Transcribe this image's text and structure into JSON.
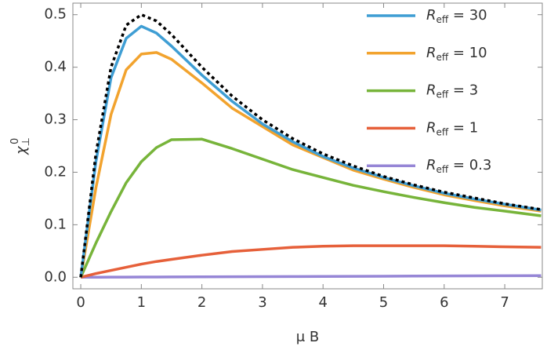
{
  "chart_data": {
    "type": "line",
    "x_label": "μ B",
    "y_label": "χ⊥0",
    "x": [
      0,
      0.25,
      0.5,
      0.75,
      1,
      1.25,
      1.5,
      2,
      2.5,
      3,
      3.5,
      4,
      4.5,
      5,
      5.5,
      6,
      6.5,
      7,
      7.6
    ],
    "series": [
      {
        "color": "#000000",
        "dash": true,
        "values": [
          0,
          0.235,
          0.4,
          0.48,
          0.5,
          0.488,
          0.462,
          0.4,
          0.345,
          0.3,
          0.264,
          0.235,
          0.212,
          0.192,
          0.176,
          0.162,
          0.151,
          0.14,
          0.129
        ]
      },
      {
        "name": "Reff = 30",
        "color": "#3f9ed4",
        "values": [
          0,
          0.22,
          0.38,
          0.455,
          0.478,
          0.465,
          0.44,
          0.385,
          0.335,
          0.292,
          0.258,
          0.23,
          0.208,
          0.19,
          0.174,
          0.16,
          0.149,
          0.139,
          0.128
        ]
      },
      {
        "name": "Reff = 10",
        "color": "#f2a32e",
        "values": [
          0,
          0.17,
          0.31,
          0.395,
          0.425,
          0.428,
          0.415,
          0.37,
          0.322,
          0.287,
          0.252,
          0.228,
          0.204,
          0.187,
          0.171,
          0.157,
          0.146,
          0.136,
          0.126
        ]
      },
      {
        "name": "Reff = 3",
        "color": "#77b43a",
        "values": [
          0,
          0.065,
          0.125,
          0.18,
          0.22,
          0.247,
          0.262,
          0.263,
          0.245,
          0.225,
          0.205,
          0.19,
          0.175,
          0.163,
          0.152,
          0.142,
          0.133,
          0.126,
          0.117
        ]
      },
      {
        "name": "Reff = 1",
        "color": "#e6603a",
        "values": [
          0,
          0.007,
          0.013,
          0.019,
          0.025,
          0.03,
          0.034,
          0.042,
          0.049,
          0.053,
          0.057,
          0.059,
          0.06,
          0.06,
          0.06,
          0.06,
          0.059,
          0.058,
          0.057
        ]
      },
      {
        "name": "Reff = 0.3",
        "color": "#9686d6",
        "values": [
          0,
          0.0001,
          0.0002,
          0.0003,
          0.0004,
          0.0005,
          0.0006,
          0.0008,
          0.001,
          0.0012,
          0.0014,
          0.0016,
          0.0018,
          0.002,
          0.0022,
          0.0024,
          0.0026,
          0.0028,
          0.003
        ]
      }
    ],
    "xlim": [
      -0.13,
      7.62
    ],
    "ylim": [
      -0.022,
      0.522
    ],
    "xticks": [
      0,
      1,
      2,
      3,
      4,
      5,
      6,
      7
    ],
    "yticks": [
      {
        "value": 0,
        "label": "0.0"
      },
      0.1,
      0.2,
      0.3,
      0.4,
      0.5
    ]
  }
}
